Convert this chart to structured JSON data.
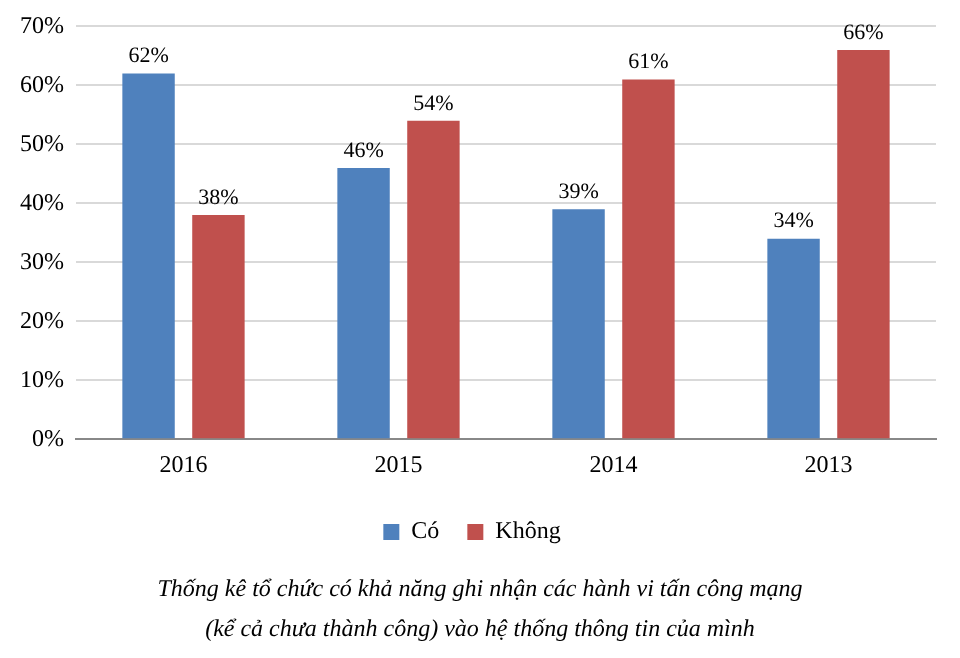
{
  "chart_data": {
    "type": "bar",
    "categories": [
      "2016",
      "2015",
      "2014",
      "2013"
    ],
    "series": [
      {
        "name": "Có",
        "color": "#4f81bd",
        "values": [
          62,
          46,
          39,
          34
        ],
        "value_labels": [
          "62%",
          "46%",
          "39%",
          "34%"
        ]
      },
      {
        "name": "Không",
        "color": "#c0504d",
        "values": [
          38,
          54,
          61,
          66
        ],
        "value_labels": [
          "38%",
          "54%",
          "61%",
          "66%"
        ]
      }
    ],
    "ylim": [
      0,
      70
    ],
    "yticks": [
      {
        "value": 0,
        "label": "0%"
      },
      {
        "value": 10,
        "label": "10%"
      },
      {
        "value": 20,
        "label": "20%"
      },
      {
        "value": 30,
        "label": "30%"
      },
      {
        "value": 40,
        "label": "40%"
      },
      {
        "value": 50,
        "label": "50%"
      },
      {
        "value": 60,
        "label": "60%"
      },
      {
        "value": 70,
        "label": "70%"
      }
    ],
    "grid": "y",
    "legend": "bottom",
    "annotations": [
      "Thống kê tổ chức có khả năng ghi nhận các hành vi tấn công mạng",
      "(kể cả chưa thành công) vào hệ thống thông tin của mình"
    ]
  }
}
